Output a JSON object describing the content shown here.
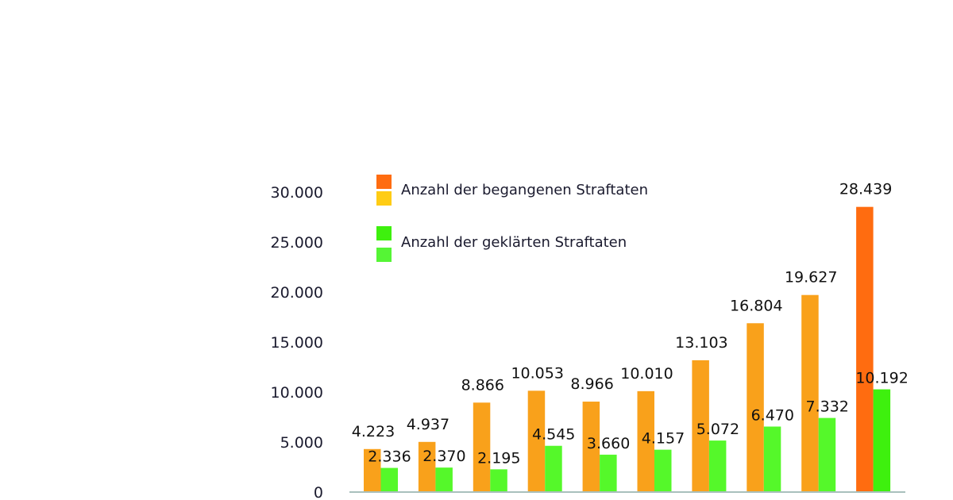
{
  "chart_data": {
    "type": "bar",
    "title": "",
    "xlabel": "",
    "ylabel": "",
    "ylim": [
      0,
      30000
    ],
    "yticks": [
      0,
      5000,
      10000,
      15000,
      20000,
      25000,
      30000
    ],
    "ytick_labels": [
      "0",
      "5.000",
      "10.000",
      "15.000",
      "20.000",
      "25.000",
      "30.000"
    ],
    "grid": false,
    "legend_placement": "top-left",
    "series": [
      {
        "name": "Anzahl der begangenen Straftaten",
        "values": [
          4223,
          4937,
          8866,
          10053,
          8966,
          10010,
          13103,
          16804,
          19627,
          28439
        ],
        "labels": [
          "4.223",
          "4.937",
          "8.866",
          "10.053",
          "8.966",
          "10.010",
          "13.103",
          "16.804",
          "19.627",
          "28.439"
        ],
        "color": "#f9a11b",
        "highlight_color": "#ff6c10",
        "legend_colors": [
          "#ff6c10",
          "#ffcc14"
        ]
      },
      {
        "name": "Anzahl der geklärten Straftaten",
        "values": [
          2336,
          2370,
          2195,
          4545,
          3660,
          4157,
          5072,
          6470,
          7332,
          10192
        ],
        "labels": [
          "2.336",
          "2.370",
          "2.195",
          "4.545",
          "3.660",
          "4.157",
          "5.072",
          "6.470",
          "7.332",
          "10.192"
        ],
        "color": "#55f82a",
        "highlight_color": "#3ef00e",
        "legend_colors": [
          "#3ef00e",
          "#55f535"
        ]
      }
    ]
  }
}
